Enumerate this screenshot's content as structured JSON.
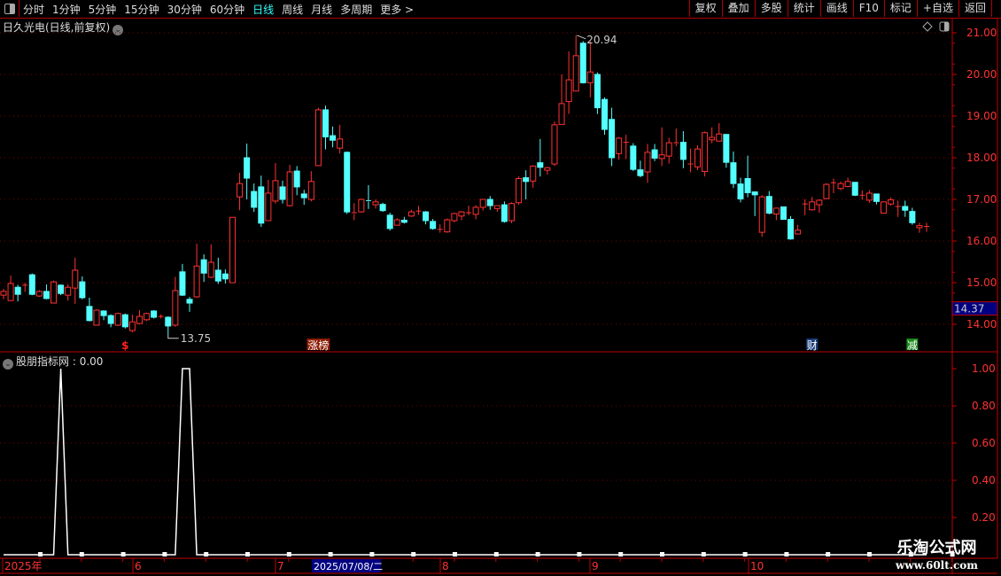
{
  "toolbar": {
    "periods": [
      "分时",
      "1分钟",
      "5分钟",
      "15分钟",
      "30分钟",
      "60分钟",
      "日线",
      "周线",
      "月线",
      "多周期",
      "更多 >"
    ],
    "active_period": "日线",
    "buttons": [
      "复权",
      "叠加",
      "多股",
      "统计",
      "画线",
      "F10",
      "标记",
      "+自选",
      "返回"
    ]
  },
  "main": {
    "title": "日久光电(日线,前复权)",
    "price_axis": [
      "21.00",
      "20.00",
      "19.00",
      "18.00",
      "17.00",
      "16.00",
      "15.00",
      "14.00"
    ],
    "current_price": "14.37",
    "high_label": "20.94",
    "low_label": "13.75",
    "markers": [
      {
        "text": "$",
        "color": "#ff2020",
        "bg": ""
      },
      {
        "text": "涨榜",
        "color": "#ffffff",
        "bg": "#8b1a00"
      },
      {
        "text": "财",
        "color": "#ffffff",
        "bg": "#1a3d7a"
      },
      {
        "text": "减",
        "color": "#ffffff",
        "bg": "#1c8a1c"
      }
    ]
  },
  "indicator": {
    "title": "股朋指标网",
    "value": ": 0.00",
    "axis": [
      "1.00",
      "0.80",
      "0.60",
      "0.40",
      "0.20"
    ]
  },
  "date_axis": {
    "labels": [
      "2025年",
      "6",
      "7",
      "8",
      "9",
      "10"
    ],
    "cursor_date": "2025/07/08/二"
  },
  "watermark": {
    "name": "乐淘公式网",
    "url": "www.60lt.com"
  },
  "colors": {
    "up": "#ff3232",
    "down": "#54ffff",
    "axis": "#c00000",
    "grid": "#7a0000",
    "cursor_bg": "#000080"
  },
  "chart_data": {
    "type": "candlestick",
    "ohlc_fields": [
      "open",
      "high",
      "low",
      "close"
    ],
    "candles": [
      [
        14.7,
        14.85,
        14.6,
        14.79
      ],
      [
        14.57,
        15.17,
        14.57,
        14.98
      ],
      [
        14.89,
        14.95,
        14.55,
        14.72
      ],
      [
        14.94,
        15.0,
        14.78,
        14.94
      ],
      [
        15.19,
        15.22,
        14.7,
        14.72
      ],
      [
        14.68,
        14.82,
        14.66,
        14.79
      ],
      [
        14.79,
        14.96,
        14.6,
        14.62
      ],
      [
        14.51,
        15.05,
        14.5,
        15.02
      ],
      [
        14.94,
        14.96,
        14.7,
        14.74
      ],
      [
        14.7,
        14.96,
        14.57,
        14.89
      ],
      [
        14.87,
        15.6,
        14.49,
        15.3
      ],
      [
        15.02,
        15.15,
        14.6,
        14.64
      ],
      [
        14.43,
        14.64,
        14.07,
        14.09
      ],
      [
        13.98,
        14.36,
        13.98,
        14.34
      ],
      [
        14.32,
        14.34,
        14.1,
        14.21
      ],
      [
        14.21,
        14.24,
        13.93,
        14.02
      ],
      [
        13.98,
        14.28,
        13.96,
        14.26
      ],
      [
        14.23,
        14.26,
        13.9,
        13.94
      ],
      [
        13.85,
        14.23,
        13.81,
        14.06
      ],
      [
        14.02,
        14.34,
        14.0,
        14.19
      ],
      [
        14.11,
        14.28,
        14.08,
        14.26
      ],
      [
        14.32,
        14.34,
        14.14,
        14.17
      ],
      [
        14.19,
        14.24,
        14.14,
        14.19
      ],
      [
        14.17,
        14.19,
        13.75,
        13.96
      ],
      [
        13.98,
        15.14,
        13.94,
        14.81
      ],
      [
        15.26,
        15.45,
        14.68,
        14.7
      ],
      [
        14.6,
        14.66,
        14.3,
        14.51
      ],
      [
        14.66,
        15.94,
        14.64,
        15.4
      ],
      [
        15.55,
        15.68,
        15.02,
        15.23
      ],
      [
        15.13,
        15.92,
        15.11,
        15.49
      ],
      [
        15.3,
        15.6,
        14.97,
        15.04
      ],
      [
        15.21,
        15.32,
        14.98,
        15.09
      ],
      [
        15.0,
        16.57,
        15.0,
        16.57
      ],
      [
        17.06,
        17.64,
        16.74,
        17.38
      ],
      [
        18.0,
        18.34,
        17.0,
        17.51
      ],
      [
        17.19,
        17.38,
        16.7,
        16.81
      ],
      [
        17.3,
        17.57,
        16.34,
        16.43
      ],
      [
        16.49,
        17.47,
        16.49,
        17.15
      ],
      [
        16.96,
        17.87,
        16.9,
        17.45
      ],
      [
        17.3,
        17.45,
        16.9,
        17.0
      ],
      [
        16.85,
        17.83,
        16.83,
        17.66
      ],
      [
        17.68,
        17.8,
        17.1,
        17.3
      ],
      [
        17.13,
        17.23,
        16.87,
        17.04
      ],
      [
        17.0,
        17.68,
        16.95,
        17.43
      ],
      [
        17.81,
        19.2,
        17.81,
        19.15
      ],
      [
        19.15,
        19.25,
        18.2,
        18.5
      ],
      [
        18.53,
        18.75,
        18.25,
        18.42
      ],
      [
        18.23,
        18.79,
        18.1,
        18.45
      ],
      [
        18.13,
        18.15,
        16.65,
        16.7
      ],
      [
        16.65,
        16.91,
        16.5,
        16.68
      ],
      [
        16.7,
        17.02,
        16.68,
        17.0
      ],
      [
        16.97,
        17.34,
        16.77,
        16.95
      ],
      [
        16.87,
        17.0,
        16.78,
        16.94
      ],
      [
        16.88,
        16.92,
        16.7,
        16.73
      ],
      [
        16.62,
        16.68,
        16.25,
        16.3
      ],
      [
        16.38,
        16.55,
        16.37,
        16.51
      ],
      [
        16.5,
        16.58,
        16.42,
        16.45
      ],
      [
        16.6,
        16.75,
        16.58,
        16.7
      ],
      [
        16.72,
        16.84,
        16.63,
        16.72
      ],
      [
        16.7,
        16.72,
        16.4,
        16.49
      ],
      [
        16.47,
        16.53,
        16.27,
        16.3
      ],
      [
        16.27,
        16.4,
        16.2,
        16.28
      ],
      [
        16.22,
        16.54,
        16.2,
        16.51
      ],
      [
        16.49,
        16.68,
        16.45,
        16.66
      ],
      [
        16.6,
        16.72,
        16.5,
        16.7
      ],
      [
        16.68,
        16.85,
        16.62,
        16.68
      ],
      [
        16.64,
        16.86,
        16.52,
        16.81
      ],
      [
        16.81,
        17.0,
        16.73,
        17.0
      ],
      [
        17.0,
        17.08,
        16.75,
        16.85
      ],
      [
        16.78,
        16.85,
        16.7,
        16.85
      ],
      [
        16.87,
        16.95,
        16.44,
        16.47
      ],
      [
        16.49,
        16.93,
        16.43,
        16.9
      ],
      [
        16.92,
        17.55,
        16.87,
        17.5
      ],
      [
        17.52,
        17.7,
        17.0,
        17.43
      ],
      [
        17.44,
        17.82,
        17.28,
        17.8
      ],
      [
        17.88,
        18.45,
        17.55,
        17.77
      ],
      [
        17.7,
        17.78,
        17.6,
        17.76
      ],
      [
        17.85,
        18.87,
        17.8,
        18.79
      ],
      [
        18.8,
        20.0,
        18.8,
        19.3
      ],
      [
        19.35,
        20.55,
        19.05,
        19.87
      ],
      [
        19.6,
        20.94,
        19.6,
        20.45
      ],
      [
        20.75,
        20.8,
        19.78,
        19.8
      ],
      [
        19.8,
        20.8,
        19.45,
        20.06
      ],
      [
        20.0,
        20.05,
        19.05,
        19.2
      ],
      [
        19.4,
        19.45,
        18.55,
        18.68
      ],
      [
        18.92,
        19.2,
        17.8,
        18.0
      ],
      [
        18.1,
        18.5,
        17.95,
        18.47
      ],
      [
        18.37,
        18.55,
        17.97,
        18.37
      ],
      [
        18.28,
        18.35,
        17.68,
        17.72
      ],
      [
        17.71,
        17.93,
        17.53,
        17.57
      ],
      [
        17.66,
        18.33,
        17.4,
        18.13
      ],
      [
        18.19,
        18.33,
        17.92,
        17.99
      ],
      [
        17.98,
        18.73,
        17.8,
        18.07
      ],
      [
        18.04,
        18.48,
        17.86,
        18.36
      ],
      [
        18.34,
        18.7,
        18.28,
        18.36
      ],
      [
        18.37,
        18.64,
        17.75,
        17.96
      ],
      [
        17.85,
        18.22,
        17.65,
        17.85
      ],
      [
        17.78,
        18.3,
        17.7,
        18.21
      ],
      [
        17.67,
        18.63,
        17.55,
        18.6
      ],
      [
        18.43,
        18.73,
        18.35,
        18.49
      ],
      [
        18.4,
        18.83,
        18.4,
        18.57
      ],
      [
        18.56,
        18.56,
        17.76,
        17.89
      ],
      [
        17.88,
        18.15,
        17.27,
        17.38
      ],
      [
        17.37,
        17.52,
        16.93,
        17.01
      ],
      [
        17.5,
        18.05,
        17.05,
        17.16
      ],
      [
        17.18,
        17.18,
        16.6,
        17.11
      ],
      [
        16.21,
        17.1,
        16.1,
        17.06
      ],
      [
        17.07,
        17.2,
        16.64,
        16.67
      ],
      [
        16.65,
        16.79,
        16.5,
        16.79
      ],
      [
        16.82,
        16.82,
        16.52,
        16.52
      ],
      [
        16.52,
        16.6,
        16.03,
        16.05
      ],
      [
        16.17,
        16.39,
        16.17,
        16.26
      ],
      [
        16.89,
        17.0,
        16.62,
        16.89
      ],
      [
        16.75,
        17.06,
        16.73,
        16.94
      ],
      [
        16.87,
        17.0,
        16.68,
        16.98
      ],
      [
        17.02,
        17.39,
        17.0,
        17.36
      ],
      [
        17.4,
        17.5,
        17.15,
        17.4
      ],
      [
        17.26,
        17.43,
        17.22,
        17.38
      ],
      [
        17.31,
        17.52,
        17.29,
        17.43
      ],
      [
        17.41,
        17.41,
        17.08,
        17.1
      ],
      [
        17.09,
        17.22,
        16.99,
        17.1
      ],
      [
        16.98,
        17.22,
        16.92,
        17.15
      ],
      [
        17.13,
        17.13,
        16.88,
        16.95
      ],
      [
        16.67,
        16.95,
        16.67,
        16.94
      ],
      [
        16.89,
        17.05,
        16.85,
        16.99
      ],
      [
        16.83,
        16.97,
        16.58,
        16.83
      ],
      [
        16.83,
        16.97,
        16.58,
        16.74
      ],
      [
        16.71,
        16.8,
        16.39,
        16.44
      ],
      [
        16.32,
        16.44,
        16.2,
        16.37
      ],
      [
        16.35,
        16.44,
        16.22,
        16.35
      ]
    ],
    "marker_candles": {
      "$": 17,
      "涨榜": 44,
      "财": 113,
      "减": 127
    },
    "indicator_values_nonzero": {
      "8": 1,
      "25": 1,
      "26": 1
    },
    "ylim": [
      13.7,
      21.1
    ],
    "indicator_ylim": [
      0,
      1.0
    ]
  }
}
